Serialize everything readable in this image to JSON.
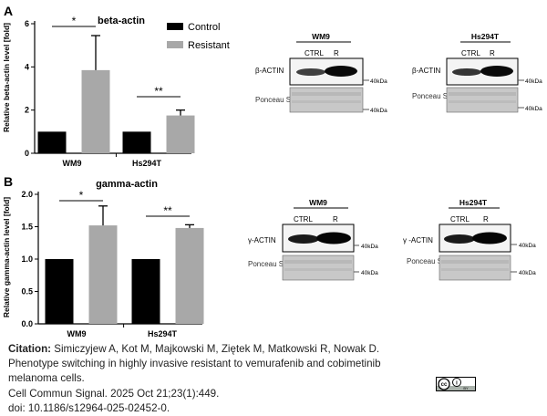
{
  "panels": {
    "a": {
      "letter": "A",
      "title": "beta-actin",
      "ylabel": "Relative beta-actin level [fold]",
      "groups": [
        "WM9",
        "Hs294T"
      ],
      "significance": [
        "*",
        "**"
      ],
      "legend": [
        "Control",
        "Resistant"
      ],
      "blots": [
        {
          "title": "WM9",
          "col1": "CTRL",
          "col2": "R",
          "protein": "β-ACTIN",
          "loading": "Ponceau S",
          "marker1": "40kDa",
          "marker2": "40kDa"
        },
        {
          "title": "Hs294T",
          "col1": "CTRL",
          "col2": "R",
          "protein": "β-ACTIN",
          "loading": "Ponceau S",
          "marker1": "40kDa",
          "marker2": "40kDa"
        }
      ]
    },
    "b": {
      "letter": "B",
      "title": "gamma-actin",
      "ylabel": "Relative gamma-actin level [fold]",
      "groups": [
        "WM9",
        "Hs294T"
      ],
      "significance": [
        "*",
        "**"
      ],
      "blots": [
        {
          "title": "WM9",
          "col1": "CTRL",
          "col2": "R",
          "protein": "γ-ACTIN",
          "loading": "Ponceau S",
          "marker1": "40kDa",
          "marker2": "40kDa"
        },
        {
          "title": "Hs294T",
          "col1": "CTRL",
          "col2": "R",
          "protein": "γ -ACTIN",
          "loading": "Ponceau S",
          "marker1": "40kDa",
          "marker2": "40kDa"
        }
      ]
    }
  },
  "colors": {
    "control": "#000000",
    "resistant": "#a8a8a8"
  },
  "chart_data": [
    {
      "type": "bar",
      "title": "beta-actin",
      "ylabel": "Relative beta-actin level [fold]",
      "categories": [
        "WM9",
        "Hs294T"
      ],
      "series": [
        {
          "name": "Control",
          "values": [
            1.0,
            1.0
          ]
        },
        {
          "name": "Resistant",
          "values": [
            3.85,
            1.75
          ],
          "error": [
            1.6,
            0.25
          ]
        }
      ],
      "ylim": [
        0,
        6
      ],
      "yticks": [
        "0",
        "2",
        "4",
        "6"
      ],
      "legend": "top-right"
    },
    {
      "type": "bar",
      "title": "gamma-actin",
      "ylabel": "Relative gamma-actin level [fold]",
      "categories": [
        "WM9",
        "Hs294T"
      ],
      "series": [
        {
          "name": "Control",
          "values": [
            1.0,
            1.0
          ]
        },
        {
          "name": "Resistant",
          "values": [
            1.52,
            1.48
          ],
          "error": [
            0.3,
            0.05
          ]
        }
      ],
      "ylim": [
        0,
        2.0
      ],
      "yticks": [
        "0.0",
        "0.5",
        "1.0",
        "1.5",
        "2.0"
      ]
    }
  ],
  "citation": {
    "label": "Citation:",
    "line1": "Simiczyjew A, Kot M, Majkowski M, Ziętek M, Matkowski R, Nowak D.",
    "line2": "Phenotype switching in highly invasive resistant to vemurafenib and cobimetinib melanoma cells.",
    "line3": "Cell Commun Signal. 2025 Oct 21;23(1):449.",
    "line4": "doi: 10.1186/s12964-025-02452-0."
  },
  "license": {
    "cc": "cc",
    "by": "i",
    "text": "BY"
  }
}
